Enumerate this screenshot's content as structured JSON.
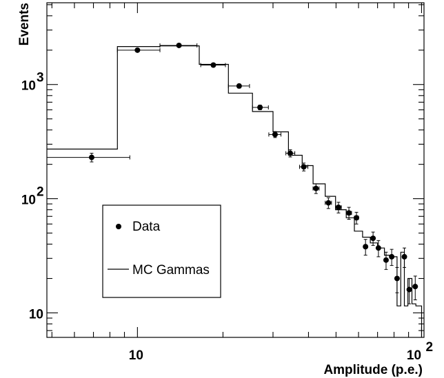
{
  "chart_data": {
    "type": "scatter",
    "xlabel": "Amplitude (p.e.)",
    "ylabel": "Events",
    "xscale": "log",
    "yscale": "log",
    "xlim": [
      4.8,
      102
    ],
    "ylim": [
      6.1,
      5200
    ],
    "x_tick_labels": [
      {
        "value": 10,
        "base": "10",
        "exp": ""
      },
      {
        "value": 100,
        "base": "10",
        "exp": "2"
      }
    ],
    "y_tick_labels": [
      {
        "value": 10,
        "base": "10",
        "exp": ""
      },
      {
        "value": 100,
        "base": "10",
        "exp": "2"
      },
      {
        "value": 1000,
        "base": "10",
        "exp": "3"
      }
    ],
    "grid": false,
    "legend": {
      "position": "middle-left",
      "entries": [
        {
          "label": "Data",
          "style": "marker"
        },
        {
          "label": "MC Gammas",
          "style": "line"
        }
      ]
    },
    "series": [
      {
        "name": "Data",
        "style": "points-with-error-bars",
        "points": [
          {
            "x": 6.9,
            "y": 230,
            "xlo": 4.8,
            "xhi": 9.4,
            "err": 20
          },
          {
            "x": 10.0,
            "y": 2000,
            "xlo": 8.5,
            "xhi": 12.0,
            "err": 60
          },
          {
            "x": 14.0,
            "y": 2200,
            "xlo": 12.0,
            "xhi": 16.2,
            "err": 70
          },
          {
            "x": 18.5,
            "y": 1480,
            "xlo": 16.7,
            "xhi": 20.4,
            "err": 50
          },
          {
            "x": 22.8,
            "y": 970,
            "xlo": 20.9,
            "xhi": 24.8,
            "err": 40
          },
          {
            "x": 27.0,
            "y": 630,
            "xlo": 25.4,
            "xhi": 28.9,
            "err": 30
          },
          {
            "x": 30.5,
            "y": 365,
            "xlo": 29.0,
            "xhi": 32.0,
            "err": 22
          },
          {
            "x": 34.5,
            "y": 250,
            "xlo": 33.3,
            "xhi": 35.8,
            "err": 18
          },
          {
            "x": 38.5,
            "y": 190,
            "xlo": 37.2,
            "xhi": 39.8,
            "err": 15
          },
          {
            "x": 42.5,
            "y": 123,
            "xlo": 41.5,
            "xhi": 43.6,
            "err": 12
          },
          {
            "x": 47.0,
            "y": 92,
            "xlo": 45.8,
            "xhi": 48.2,
            "err": 10
          },
          {
            "x": 51.0,
            "y": 84,
            "xlo": 49.8,
            "xhi": 52.2,
            "err": 9
          },
          {
            "x": 55.5,
            "y": 75,
            "xlo": 54.3,
            "xhi": 56.7,
            "err": 9
          },
          {
            "x": 59.0,
            "y": 68,
            "xlo": 58.0,
            "xhi": 60.0,
            "err": 8
          },
          {
            "x": 63.5,
            "y": 38,
            "xlo": 63.5,
            "xhi": 63.5,
            "err": 6
          },
          {
            "x": 67.5,
            "y": 45,
            "xlo": 67.5,
            "xhi": 67.5,
            "err": 6
          },
          {
            "x": 70.5,
            "y": 37,
            "xlo": 70.5,
            "xhi": 70.5,
            "err": 6
          },
          {
            "x": 75.0,
            "y": 29,
            "xlo": 75.0,
            "xhi": 75.0,
            "err": 5
          },
          {
            "x": 78.5,
            "y": 31,
            "xlo": 78.5,
            "xhi": 78.5,
            "err": 5
          },
          {
            "x": 82.0,
            "y": 20,
            "xlo": 82.0,
            "xhi": 82.0,
            "err": 5
          },
          {
            "x": 87.0,
            "y": 31,
            "xlo": 87.0,
            "xhi": 87.0,
            "err": 6
          },
          {
            "x": 90.5,
            "y": 16,
            "xlo": 90.5,
            "xhi": 90.5,
            "err": 4
          },
          {
            "x": 95.0,
            "y": 17,
            "xlo": 95.0,
            "xhi": 95.0,
            "err": 4
          }
        ]
      },
      {
        "name": "MC Gammas",
        "style": "step-histogram",
        "bins": [
          {
            "x0": 4.8,
            "x1": 8.5,
            "y": 272
          },
          {
            "x0": 8.5,
            "x1": 12.0,
            "y": 2150
          },
          {
            "x0": 12.0,
            "x1": 16.5,
            "y": 2180
          },
          {
            "x0": 16.5,
            "x1": 20.9,
            "y": 1500
          },
          {
            "x0": 20.9,
            "x1": 25.4,
            "y": 840
          },
          {
            "x0": 25.4,
            "x1": 30.0,
            "y": 580
          },
          {
            "x0": 30.0,
            "x1": 34.0,
            "y": 385
          },
          {
            "x0": 34.0,
            "x1": 38.0,
            "y": 240
          },
          {
            "x0": 38.0,
            "x1": 41.5,
            "y": 195
          },
          {
            "x0": 41.5,
            "x1": 45.8,
            "y": 135
          },
          {
            "x0": 45.8,
            "x1": 49.8,
            "y": 105
          },
          {
            "x0": 49.8,
            "x1": 54.3,
            "y": 80
          },
          {
            "x0": 54.3,
            "x1": 58.0,
            "y": 68
          },
          {
            "x0": 58.0,
            "x1": 62.0,
            "y": 52
          },
          {
            "x0": 62.0,
            "x1": 66.0,
            "y": 46
          },
          {
            "x0": 66.0,
            "x1": 70.0,
            "y": 41
          },
          {
            "x0": 70.0,
            "x1": 74.0,
            "y": 37
          },
          {
            "x0": 74.0,
            "x1": 78.0,
            "y": 32
          },
          {
            "x0": 78.0,
            "x1": 82.0,
            "y": 31
          },
          {
            "x0": 82.0,
            "x1": 84.5,
            "y": 11.5
          },
          {
            "x0": 84.5,
            "x1": 87.0,
            "y": 34
          },
          {
            "x0": 87.0,
            "x1": 89.5,
            "y": 11.5
          },
          {
            "x0": 89.5,
            "x1": 92.5,
            "y": 20
          },
          {
            "x0": 92.5,
            "x1": 95.5,
            "y": 12
          },
          {
            "x0": 95.5,
            "x1": 100.0,
            "y": 11.5
          }
        ]
      }
    ]
  }
}
